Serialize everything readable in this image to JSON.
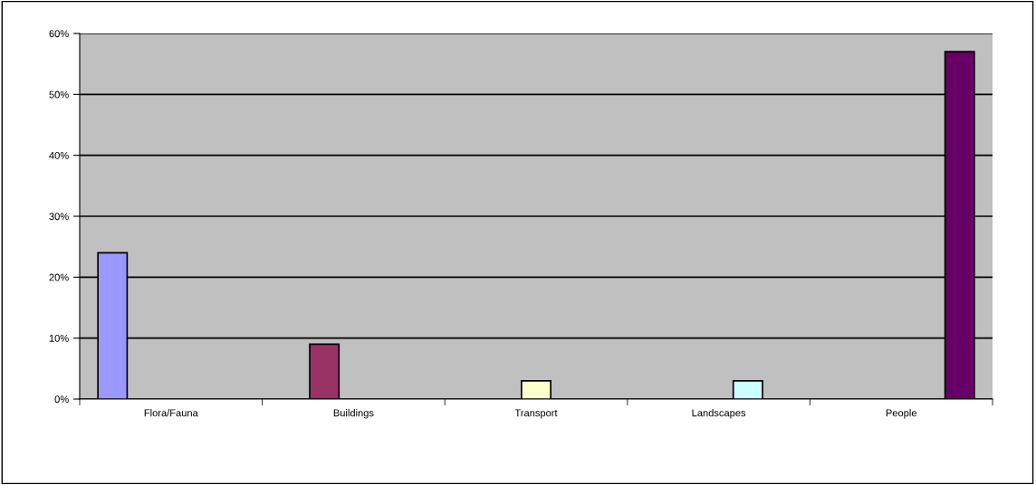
{
  "chart_data": {
    "type": "bar",
    "categories": [
      "Flora/Fauna",
      "Buildings",
      "Transport",
      "Landscapes",
      "People"
    ],
    "series": [
      {
        "color": "#9999ff",
        "values": [
          24,
          null,
          null,
          null,
          null
        ]
      },
      {
        "color": "#993366",
        "values": [
          null,
          9,
          null,
          null,
          null
        ]
      },
      {
        "color": "#ffffcc",
        "values": [
          null,
          null,
          3,
          null,
          null
        ]
      },
      {
        "color": "#ccffff",
        "values": [
          null,
          null,
          null,
          3,
          null
        ]
      },
      {
        "color": "#660066",
        "values": [
          null,
          null,
          null,
          null,
          57
        ]
      }
    ],
    "ylim": [
      0,
      60
    ],
    "yticks": [
      {
        "value": 0,
        "label": "0%"
      },
      {
        "value": 10,
        "label": "10%"
      },
      {
        "value": 20,
        "label": "20%"
      },
      {
        "value": 30,
        "label": "30%"
      },
      {
        "value": 40,
        "label": "40%"
      },
      {
        "value": 50,
        "label": "50%"
      },
      {
        "value": 60,
        "label": "60%"
      }
    ],
    "grid": "y",
    "legend": false
  }
}
